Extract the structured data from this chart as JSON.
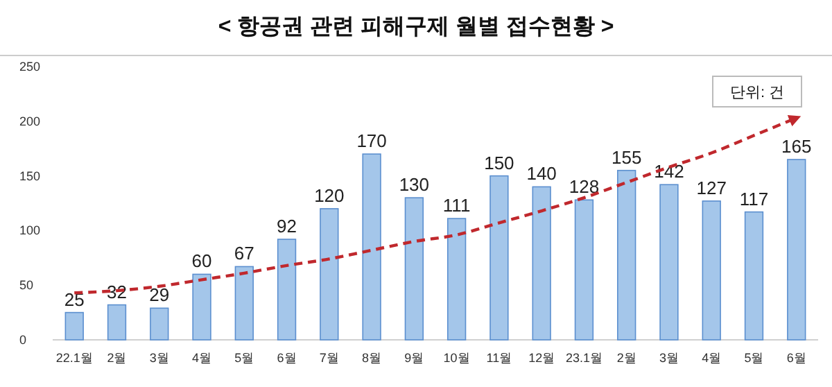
{
  "chart_data": {
    "type": "bar",
    "title": "< 항공권 관련 피해구제 월별 접수현황 >",
    "categories": [
      "22.1월",
      "2월",
      "3월",
      "4월",
      "5월",
      "6월",
      "7월",
      "8월",
      "9월",
      "10월",
      "11월",
      "12월",
      "23.1월",
      "2월",
      "3월",
      "4월",
      "5월",
      "6월"
    ],
    "series": [
      {
        "color": "#a4c6ea",
        "values": [
          25,
          32,
          29,
          60,
          67,
          92,
          120,
          170,
          130,
          111,
          150,
          140,
          128,
          155,
          142,
          127,
          117,
          165
        ],
        "value_labels": [
          "25",
          "32",
          "29",
          "60",
          "67",
          "92",
          "120",
          "170",
          "130",
          "111",
          "150",
          "140",
          "128",
          "155",
          "142",
          "127",
          "117",
          "165"
        ]
      },
      {
        "type": "line",
        "color": "#c0282d",
        "line_style": "dashed",
        "marker": "none",
        "values": [
          43,
          45,
          49,
          55,
          61,
          68,
          74,
          82,
          90,
          96,
          107,
          118,
          130,
          144,
          158,
          171,
          187,
          203
        ]
      }
    ],
    "ylim": [
      0,
      250
    ],
    "yticks": [
      0,
      50,
      100,
      150,
      200,
      250
    ],
    "grid": false,
    "annotations": [
      "단위: 건"
    ]
  }
}
